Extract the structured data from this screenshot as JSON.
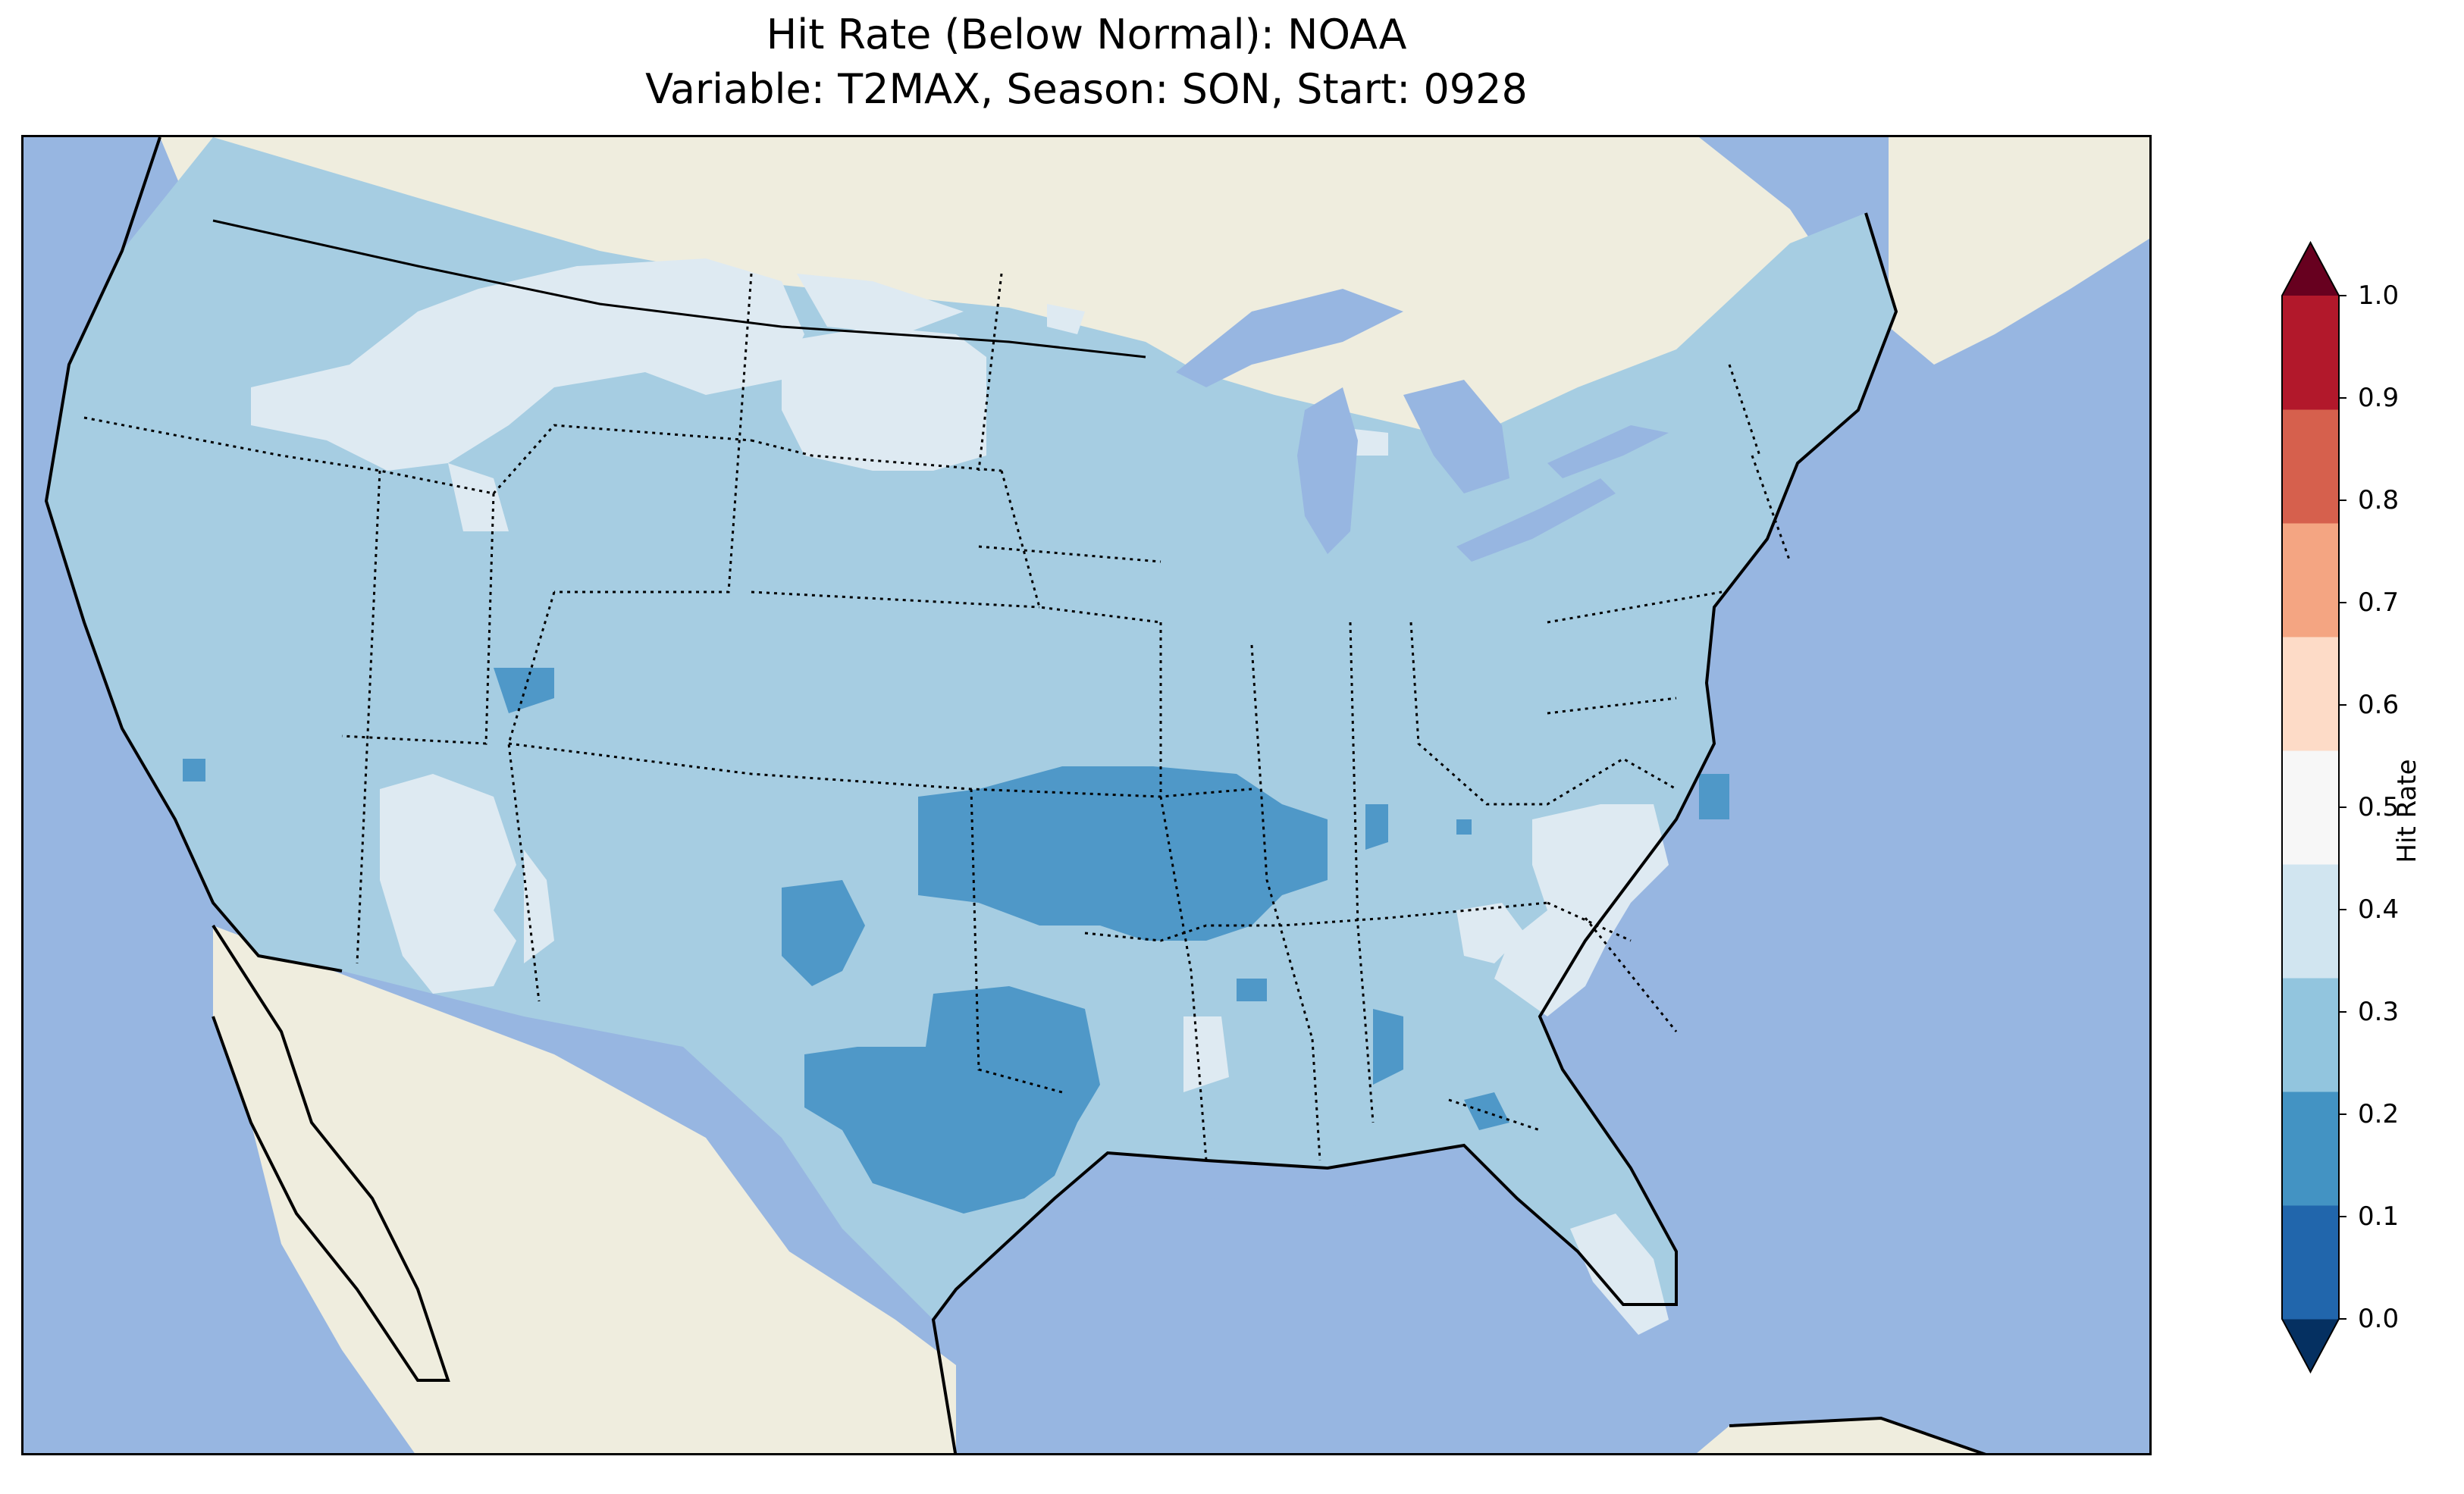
{
  "title_line1": "Hit Rate (Below Normal): NOAA",
  "title_line2": "Variable: T2MAX, Season: SON, Start: 0928",
  "colorbar": {
    "label": "Hit Rate",
    "ticks": [
      "1.0",
      "0.9",
      "0.8",
      "0.7",
      "0.6",
      "0.5",
      "0.4",
      "0.3",
      "0.2",
      "0.1",
      "0.0"
    ],
    "colors": [
      "#053061",
      "#2166ac",
      "#4393c3",
      "#92c5de",
      "#d1e5f0",
      "#f7f7f7",
      "#fddbc7",
      "#f4a582",
      "#d6604d",
      "#b2182b",
      "#67001f"
    ]
  },
  "map": {
    "ocean_color": "#97b6e1",
    "land_color": "#efedde",
    "class_colors": {
      "0.2-0.3": "#4f98c8",
      "0.3-0.4": "#a6cde2",
      "0.4-0.5": "#deeaf2",
      "0.5-0.6": "#f9e3db"
    }
  }
}
